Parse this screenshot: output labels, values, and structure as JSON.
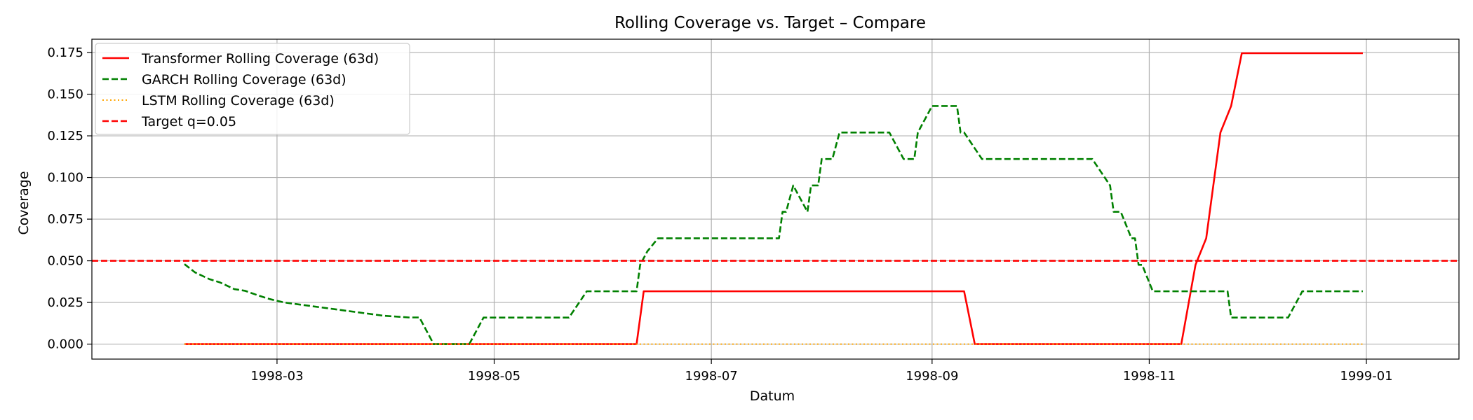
{
  "chart_data": {
    "type": "line",
    "title": "Rolling Coverage vs. Target – Compare",
    "xlabel": "Datum",
    "ylabel": "Coverage",
    "xlim": [
      "1998-01-08",
      "1999-01-27"
    ],
    "ylim": [
      -0.009,
      0.183
    ],
    "x_ticks": [
      "1998-03",
      "1998-05",
      "1998-07",
      "1998-09",
      "1998-11",
      "1999-01"
    ],
    "y_ticks": [
      "0.000",
      "0.025",
      "0.050",
      "0.075",
      "0.100",
      "0.125",
      "0.150",
      "0.175"
    ],
    "grid": true,
    "legend_position": "top-left",
    "series": [
      {
        "name": "Transformer Rolling Coverage (63d)",
        "color": "#ff0000",
        "style": "solid",
        "points": [
          [
            "1998-02-03",
            0.0
          ],
          [
            "1998-06-10",
            0.0
          ],
          [
            "1998-06-12",
            0.0317
          ],
          [
            "1998-09-10",
            0.0317
          ],
          [
            "1998-09-13",
            0.0
          ],
          [
            "1998-11-10",
            0.0
          ],
          [
            "1998-11-14",
            0.0476
          ],
          [
            "1998-11-17",
            0.0635
          ],
          [
            "1998-11-21",
            0.127
          ],
          [
            "1998-11-24",
            0.1429
          ],
          [
            "1998-11-27",
            0.1746
          ],
          [
            "1998-12-31",
            0.1746
          ]
        ]
      },
      {
        "name": "GARCH Rolling Coverage (63d)",
        "color": "#008000",
        "style": "dashed",
        "points": [
          [
            "1998-02-03",
            0.048
          ],
          [
            "1998-02-06",
            0.043
          ],
          [
            "1998-02-10",
            0.039
          ],
          [
            "1998-02-13",
            0.037
          ],
          [
            "1998-02-17",
            0.033
          ],
          [
            "1998-02-20",
            0.032
          ],
          [
            "1998-02-24",
            0.029
          ],
          [
            "1998-02-27",
            0.027
          ],
          [
            "1998-03-03",
            0.025
          ],
          [
            "1998-03-10",
            0.023
          ],
          [
            "1998-03-17",
            0.021
          ],
          [
            "1998-03-24",
            0.019
          ],
          [
            "1998-03-31",
            0.017
          ],
          [
            "1998-04-07",
            0.016
          ],
          [
            "1998-04-10",
            0.016
          ],
          [
            "1998-04-14",
            0.0
          ],
          [
            "1998-04-24",
            0.0
          ],
          [
            "1998-04-28",
            0.0159
          ],
          [
            "1998-05-22",
            0.0159
          ],
          [
            "1998-05-27",
            0.0317
          ],
          [
            "1998-06-10",
            0.0317
          ],
          [
            "1998-06-11",
            0.0476
          ],
          [
            "1998-06-13",
            0.0556
          ],
          [
            "1998-06-16",
            0.0635
          ],
          [
            "1998-07-20",
            0.0635
          ],
          [
            "1998-07-21",
            0.0794
          ],
          [
            "1998-07-22",
            0.0794
          ],
          [
            "1998-07-24",
            0.0952
          ],
          [
            "1998-07-28",
            0.0794
          ],
          [
            "1998-07-29",
            0.0952
          ],
          [
            "1998-07-31",
            0.0952
          ],
          [
            "1998-08-01",
            0.1111
          ],
          [
            "1998-08-04",
            0.1111
          ],
          [
            "1998-08-06",
            0.127
          ],
          [
            "1998-08-20",
            0.127
          ],
          [
            "1998-08-24",
            0.1111
          ],
          [
            "1998-08-27",
            0.1111
          ],
          [
            "1998-08-28",
            0.127
          ],
          [
            "1998-09-01",
            0.1429
          ],
          [
            "1998-09-08",
            0.1429
          ],
          [
            "1998-09-09",
            0.127
          ],
          [
            "1998-09-10",
            0.127
          ],
          [
            "1998-09-15",
            0.1111
          ],
          [
            "1998-10-16",
            0.1111
          ],
          [
            "1998-10-21",
            0.0952
          ],
          [
            "1998-10-22",
            0.0794
          ],
          [
            "1998-10-24",
            0.0794
          ],
          [
            "1998-10-27",
            0.0635
          ],
          [
            "1998-10-28",
            0.0635
          ],
          [
            "1998-10-29",
            0.0476
          ],
          [
            "1998-10-30",
            0.0476
          ],
          [
            "1998-11-02",
            0.0317
          ],
          [
            "1998-11-23",
            0.0317
          ],
          [
            "1998-11-24",
            0.0159
          ],
          [
            "1998-12-10",
            0.0159
          ],
          [
            "1998-12-14",
            0.0317
          ],
          [
            "1998-12-31",
            0.0317
          ]
        ]
      },
      {
        "name": "LSTM Rolling Coverage (63d)",
        "color": "#ffa500",
        "style": "dotted",
        "points": [
          [
            "1998-02-03",
            0.0
          ],
          [
            "1998-12-31",
            0.0
          ]
        ]
      },
      {
        "name": "Target q=0.05",
        "color": "#ff0000",
        "style": "dashed",
        "hline": 0.05
      }
    ]
  }
}
